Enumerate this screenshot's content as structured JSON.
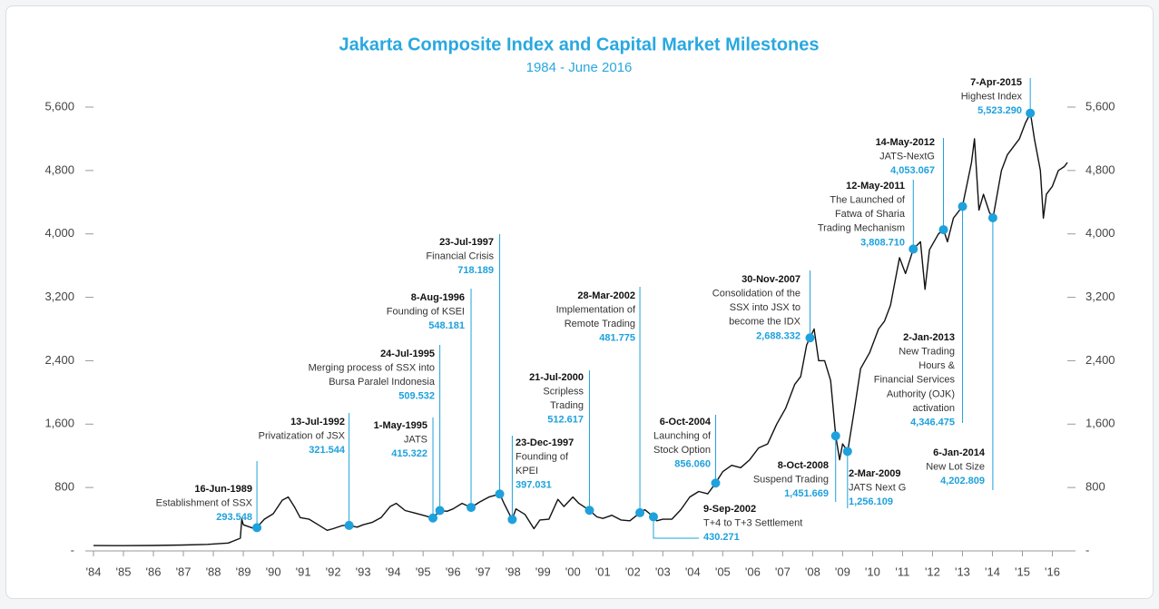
{
  "chart_data": {
    "type": "line",
    "title": "Jakarta Composite Index and Capital Market Milestones",
    "subtitle": "1984 - June 2016",
    "color": "#111111",
    "marker_color": "#1ea1dc",
    "xlim": [
      1984,
      2016.5
    ],
    "ylim": [
      0,
      5600
    ],
    "xticks": [
      {
        "value": 1984,
        "label": "'84"
      },
      {
        "value": 1985,
        "label": "'85"
      },
      {
        "value": 1986,
        "label": "'86"
      },
      {
        "value": 1987,
        "label": "'87"
      },
      {
        "value": 1988,
        "label": "'88"
      },
      {
        "value": 1989,
        "label": "'89"
      },
      {
        "value": 1990,
        "label": "'90"
      },
      {
        "value": 1991,
        "label": "'91"
      },
      {
        "value": 1992,
        "label": "'92"
      },
      {
        "value": 1993,
        "label": "'93"
      },
      {
        "value": 1994,
        "label": "'94"
      },
      {
        "value": 1995,
        "label": "'95"
      },
      {
        "value": 1996,
        "label": "'96"
      },
      {
        "value": 1997,
        "label": "'97"
      },
      {
        "value": 1998,
        "label": "'98"
      },
      {
        "value": 1999,
        "label": "'99"
      },
      {
        "value": 2000,
        "label": "'00"
      },
      {
        "value": 2001,
        "label": "'01"
      },
      {
        "value": 2002,
        "label": "'02"
      },
      {
        "value": 2003,
        "label": "'03"
      },
      {
        "value": 2004,
        "label": "'04"
      },
      {
        "value": 2005,
        "label": "'05"
      },
      {
        "value": 2006,
        "label": "'06"
      },
      {
        "value": 2007,
        "label": "'07"
      },
      {
        "value": 2008,
        "label": "'08"
      },
      {
        "value": 2009,
        "label": "'09"
      },
      {
        "value": 2010,
        "label": "'10"
      },
      {
        "value": 2011,
        "label": "'11"
      },
      {
        "value": 2012,
        "label": "'12"
      },
      {
        "value": 2013,
        "label": "'13"
      },
      {
        "value": 2014,
        "label": "'14"
      },
      {
        "value": 2015,
        "label": "'15"
      },
      {
        "value": 2016,
        "label": "'16"
      }
    ],
    "yticks": [
      {
        "value": 0,
        "label": "-"
      },
      {
        "value": 800,
        "label": "800"
      },
      {
        "value": 1600,
        "label": "1,600"
      },
      {
        "value": 2400,
        "label": "2,400"
      },
      {
        "value": 3200,
        "label": "3,200"
      },
      {
        "value": 4000,
        "label": "4,000"
      },
      {
        "value": 4800,
        "label": "4,800"
      },
      {
        "value": 5600,
        "label": "5,600"
      }
    ],
    "x": [
      1984.0,
      1985.0,
      1986.0,
      1987.0,
      1987.8,
      1988.5,
      1988.9,
      1988.95,
      1989.0,
      1989.3,
      1989.45,
      1989.7,
      1990.0,
      1990.3,
      1990.5,
      1990.7,
      1990.9,
      1991.2,
      1991.5,
      1991.8,
      1992.0,
      1992.3,
      1992.53,
      1992.8,
      1993.0,
      1993.3,
      1993.6,
      1993.9,
      1994.1,
      1994.4,
      1994.7,
      1995.0,
      1995.33,
      1995.56,
      1995.8,
      1996.0,
      1996.3,
      1996.6,
      1996.9,
      1997.2,
      1997.56,
      1997.7,
      1997.97,
      1998.1,
      1998.4,
      1998.7,
      1998.9,
      1999.2,
      1999.5,
      1999.7,
      2000.0,
      2000.2,
      2000.55,
      2000.8,
      2001.0,
      2001.3,
      2001.6,
      2001.9,
      2002.24,
      2002.4,
      2002.69,
      2002.8,
      2003.0,
      2003.3,
      2003.6,
      2003.9,
      2004.2,
      2004.5,
      2004.76,
      2005.0,
      2005.3,
      2005.6,
      2005.9,
      2006.2,
      2006.5,
      2006.8,
      2007.1,
      2007.4,
      2007.6,
      2007.8,
      2007.91,
      2008.05,
      2008.2,
      2008.4,
      2008.6,
      2008.77,
      2008.9,
      2009.0,
      2009.17,
      2009.4,
      2009.6,
      2009.9,
      2010.2,
      2010.4,
      2010.6,
      2010.9,
      2011.1,
      2011.36,
      2011.6,
      2011.75,
      2011.9,
      2012.2,
      2012.37,
      2012.5,
      2012.7,
      2013.0,
      2013.3,
      2013.4,
      2013.55,
      2013.7,
      2013.9,
      2014.02,
      2014.3,
      2014.5,
      2014.7,
      2014.9,
      2015.1,
      2015.27,
      2015.4,
      2015.6,
      2015.7,
      2015.8,
      2016.0,
      2016.2,
      2016.4,
      2016.5
    ],
    "values": [
      67,
      66,
      69,
      75,
      83,
      100,
      160,
      400,
      330,
      290,
      294,
      400,
      470,
      640,
      680,
      560,
      420,
      400,
      330,
      260,
      280,
      320,
      322,
      300,
      330,
      360,
      420,
      560,
      600,
      510,
      480,
      450,
      415,
      510,
      500,
      530,
      600,
      548,
      620,
      680,
      718,
      600,
      397,
      530,
      460,
      280,
      390,
      400,
      650,
      560,
      680,
      600,
      513,
      430,
      410,
      450,
      390,
      380,
      482,
      520,
      430,
      380,
      400,
      400,
      520,
      680,
      750,
      720,
      856,
      1000,
      1080,
      1050,
      1150,
      1300,
      1350,
      1600,
      1800,
      2100,
      2200,
      2600,
      2688,
      2800,
      2400,
      2400,
      2150,
      1452,
      1150,
      1350,
      1256,
      1800,
      2300,
      2500,
      2800,
      2900,
      3100,
      3700,
      3500,
      3809,
      3900,
      3300,
      3800,
      4000,
      4053,
      3900,
      4200,
      4346,
      4900,
      5200,
      4300,
      4500,
      4270,
      4203,
      4800,
      5000,
      5100,
      5200,
      5400,
      5523,
      5200,
      4800,
      4200,
      4500,
      4600,
      4800,
      4850,
      4900
    ],
    "milestones": [
      {
        "date": "16-Jun-1989",
        "text": [
          "Establishment of SSX"
        ],
        "value": 293.548
      },
      {
        "date": "13-Jul-1992",
        "text": [
          "Privatization of JSX"
        ],
        "value": 321.544
      },
      {
        "date": "1-May-1995",
        "text": [
          "JATS"
        ],
        "value": 415.322
      },
      {
        "date": "24-Jul-1995",
        "text": [
          "Merging process of SSX into",
          "Bursa Paralel Indonesia"
        ],
        "value": 509.532
      },
      {
        "date": "8-Aug-1996",
        "text": [
          "Founding of KSEI"
        ],
        "value": 548.181
      },
      {
        "date": "23-Jul-1997",
        "text": [
          "Financial Crisis"
        ],
        "value": 718.189
      },
      {
        "date": "23-Dec-1997",
        "text": [
          "Founding of",
          "KPEI"
        ],
        "value": 397.031
      },
      {
        "date": "21-Jul-2000",
        "text": [
          "Scripless",
          "Trading"
        ],
        "value": 512.617
      },
      {
        "date": "28-Mar-2002",
        "text": [
          "Implementation of",
          "Remote Trading"
        ],
        "value": 481.775
      },
      {
        "date": "9-Sep-2002",
        "text": [
          "T+4 to T+3 Settlement"
        ],
        "value": 430.271
      },
      {
        "date": "6-Oct-2004",
        "text": [
          "Launching of",
          "Stock Option"
        ],
        "value": 856.06,
        "value_label": "856.060"
      },
      {
        "date": "30-Nov-2007",
        "text": [
          "Consolidation of the",
          "SSX into JSX to",
          "become the IDX"
        ],
        "value": 2688.332,
        "value_label": "2,688.332"
      },
      {
        "date": "8-Oct-2008",
        "text": [
          "Suspend Trading"
        ],
        "value": 1451.669,
        "value_label": "1,451.669"
      },
      {
        "date": "2-Mar-2009",
        "text": [
          "JATS Next G"
        ],
        "value": 1256.109,
        "value_label": "1,256.109"
      },
      {
        "date": "12-May-2011",
        "text": [
          "The Launched of",
          "Fatwa of Sharia",
          "Trading Mechanism"
        ],
        "value": 3808.71,
        "value_label": "3,808.710"
      },
      {
        "date": "14-May-2012",
        "text": [
          "JATS-NextG"
        ],
        "value": 4053.067,
        "value_label": "4,053.067"
      },
      {
        "date": "2-Jan-2013",
        "text": [
          "New Trading",
          "Hours &",
          "Financial Services",
          "Authority (OJK)",
          "activation"
        ],
        "value": 4346.475,
        "value_label": "4,346.475"
      },
      {
        "date": "6-Jan-2014",
        "text": [
          "New Lot Size"
        ],
        "value": 4202.809,
        "value_label": "4,202.809"
      },
      {
        "date": "7-Apr-2015",
        "text": [
          "Highest Index"
        ],
        "value": 5523.29,
        "value_label": "5,523.290"
      }
    ]
  }
}
